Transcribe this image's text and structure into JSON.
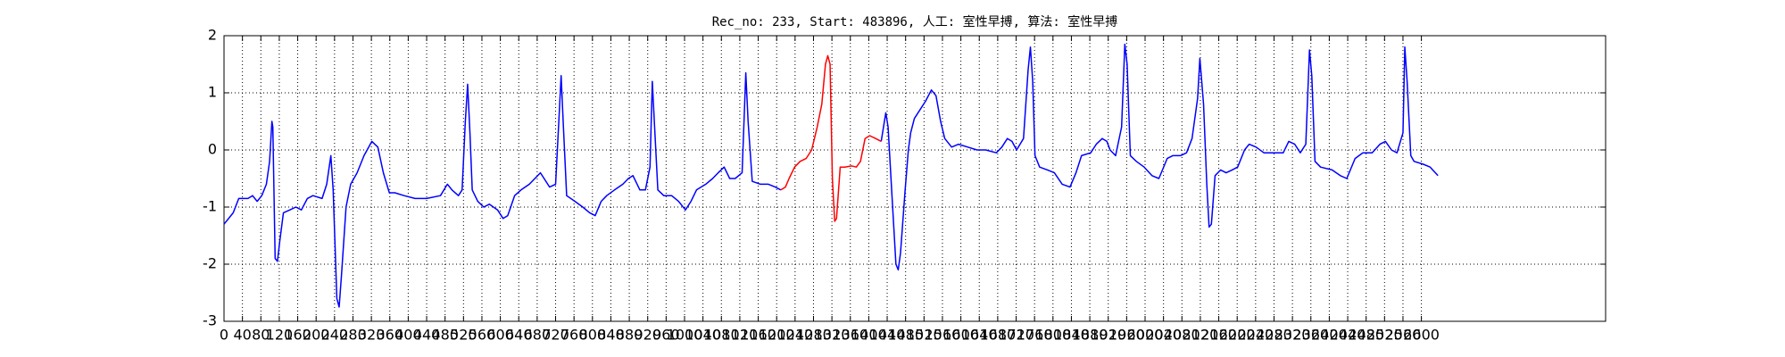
{
  "chart_data": {
    "type": "line",
    "title": "Rec_no: 233, Start: 483896, 人工: 室性早搏, 算法: 室性早搏",
    "xlim": [
      0,
      3000
    ],
    "ylim": [
      -3,
      2
    ],
    "xticks": [
      0,
      40,
      80,
      120,
      160,
      200,
      240,
      280,
      320,
      360,
      400,
      440,
      480,
      520,
      560,
      600,
      640,
      680,
      720,
      760,
      800,
      840,
      880,
      920,
      960,
      1000,
      1040,
      1080,
      1120,
      1160,
      1200,
      1240,
      1280,
      1320,
      1360,
      1400,
      1440,
      1480,
      1520,
      1560,
      1600,
      1640,
      1680,
      1720,
      1760,
      1800,
      1840,
      1880,
      1920,
      1960,
      2000,
      2040,
      2080,
      2120,
      2160,
      2200,
      2240,
      2280,
      2320,
      2360,
      2400,
      2440,
      2480,
      2520,
      2560,
      2600
    ],
    "yticks": [
      -3,
      -2,
      -1,
      0,
      1,
      2
    ],
    "grid": true,
    "series": [
      {
        "color": "#0000ff",
        "x": [
          0,
          20,
          32,
          52,
          62,
          72,
          82,
          92,
          99,
          104,
          106,
          111,
          116,
          121,
          129,
          143,
          156,
          168,
          181,
          193,
          213,
          223,
          232,
          237,
          245,
          250,
          255,
          265,
          275,
          289,
          304,
          321,
          334,
          346,
          359,
          371,
          391,
          415,
          440,
          470,
          485,
          495,
          509,
          517,
          524,
          529,
          534,
          539,
          551,
          564,
          576,
          594,
          606,
          616,
          631,
          645,
          663,
          675,
          687,
          695,
          707,
          720,
          727,
          732,
          737,
          744,
          762,
          779,
          794,
          806,
          819,
          831,
          848,
          866,
          878,
          888,
          903,
          915,
          925,
          930,
          935,
          942,
          955,
          972,
          987,
          1002,
          1014,
          1026,
          1046,
          1061,
          1073,
          1086,
          1098,
          1110,
          1125,
          1133,
          1138,
          1147,
          1165,
          1182,
          1197,
          1209,
          1311,
          1427,
          1437,
          1442,
          1449,
          1459,
          1464,
          1469,
          1479,
          1486,
          1491,
          1499,
          1511,
          1523,
          1536,
          1546,
          1556,
          1565,
          1580,
          1595,
          1615,
          1635,
          1654,
          1677,
          1689,
          1701,
          1711,
          1721,
          1736,
          1746,
          1751,
          1756,
          1761,
          1771,
          1788,
          1803,
          1820,
          1837,
          1850,
          1862,
          1882,
          1894,
          1907,
          1917,
          1924,
          1936,
          1949,
          1956,
          1961,
          1968,
          1981,
          1998,
          2015,
          2030,
          2048,
          2060,
          2077,
          2090,
          2102,
          2114,
          2119,
          2127,
          2134,
          2139,
          2144,
          2152,
          2164,
          2176,
          2189,
          2201,
          2216,
          2226,
          2241,
          2258,
          2283,
          2300,
          2312,
          2325,
          2337,
          2349,
          2357,
          2362,
          2369,
          2381,
          2406,
          2424,
          2438,
          2456,
          2473,
          2493,
          2510,
          2522,
          2535,
          2547,
          2560,
          2564,
          2569,
          2577,
          2584,
          2604,
          2619,
          2636
        ],
        "values": [
          -1.3,
          -1.1,
          -0.85,
          -0.85,
          -0.8,
          -0.9,
          -0.8,
          -0.6,
          -0.2,
          0.5,
          0.4,
          -1.9,
          -1.95,
          -1.6,
          -1.1,
          -1.05,
          -1.0,
          -1.05,
          -0.85,
          -0.8,
          -0.85,
          -0.6,
          -0.1,
          -0.7,
          -2.6,
          -2.75,
          -2.2,
          -1.0,
          -0.6,
          -0.4,
          -0.1,
          0.15,
          0.05,
          -0.4,
          -0.75,
          -0.75,
          -0.8,
          -0.85,
          -0.85,
          -0.8,
          -0.6,
          -0.7,
          -0.8,
          -0.7,
          0.5,
          1.15,
          0.3,
          -0.7,
          -0.9,
          -1.0,
          -0.95,
          -1.05,
          -1.2,
          -1.15,
          -0.8,
          -0.7,
          -0.6,
          -0.5,
          -0.4,
          -0.5,
          -0.65,
          -0.6,
          0.5,
          1.3,
          0.4,
          -0.8,
          -0.9,
          -1.0,
          -1.1,
          -1.15,
          -0.9,
          -0.8,
          -0.7,
          -0.6,
          -0.5,
          -0.45,
          -0.7,
          -0.7,
          -0.3,
          1.2,
          0.4,
          -0.7,
          -0.8,
          -0.8,
          -0.9,
          -1.05,
          -0.9,
          -0.7,
          -0.6,
          -0.5,
          -0.4,
          -0.3,
          -0.5,
          -0.5,
          -0.4,
          1.35,
          0.5,
          -0.55,
          -0.6,
          -0.6,
          -0.65,
          -0.7,
          null,
          0.15,
          0.65,
          0.4,
          -0.6,
          -2.0,
          -2.1,
          -1.8,
          -0.7,
          0.0,
          0.3,
          0.55,
          0.7,
          0.85,
          1.05,
          0.95,
          0.5,
          0.2,
          0.05,
          0.1,
          0.05,
          0.0,
          0.0,
          -0.05,
          0.05,
          0.2,
          0.15,
          0.0,
          0.2,
          1.4,
          1.8,
          1.2,
          -0.1,
          -0.3,
          -0.35,
          -0.4,
          -0.6,
          -0.65,
          -0.4,
          -0.1,
          -0.05,
          0.1,
          0.2,
          0.15,
          0.0,
          -0.1,
          0.4,
          1.85,
          1.5,
          -0.1,
          -0.2,
          -0.3,
          -0.45,
          -0.5,
          -0.15,
          -0.1,
          -0.1,
          -0.05,
          0.2,
          0.9,
          1.6,
          0.8,
          -0.6,
          -1.35,
          -1.3,
          -0.45,
          -0.35,
          -0.4,
          -0.35,
          -0.3,
          0.0,
          0.1,
          0.05,
          -0.05,
          -0.05,
          -0.05,
          0.15,
          0.1,
          -0.05,
          0.1,
          1.75,
          1.3,
          -0.2,
          -0.3,
          -0.35,
          -0.45,
          -0.5,
          -0.15,
          -0.05,
          -0.05,
          0.1,
          0.15,
          0.0,
          -0.05,
          0.3,
          1.8,
          1.2,
          -0.1,
          -0.2,
          -0.25,
          -0.3,
          -0.45
        ]
      },
      {
        "color": "#ff0000",
        "x": [
          1209,
          1219,
          1227,
          1239,
          1251,
          1264,
          1276,
          1288,
          1298,
          1306,
          1311,
          1316,
          1321,
          1326,
          1330,
          1338,
          1348,
          1363,
          1373,
          1382,
          1392,
          1402,
          1415,
          1427
        ],
        "values": [
          -0.7,
          -0.65,
          -0.5,
          -0.3,
          -0.2,
          -0.15,
          0.0,
          0.4,
          0.8,
          1.5,
          1.65,
          1.5,
          -0.5,
          -1.25,
          -1.2,
          -0.3,
          -0.3,
          -0.28,
          -0.3,
          -0.2,
          0.2,
          0.25,
          0.2,
          0.15
        ]
      }
    ]
  }
}
